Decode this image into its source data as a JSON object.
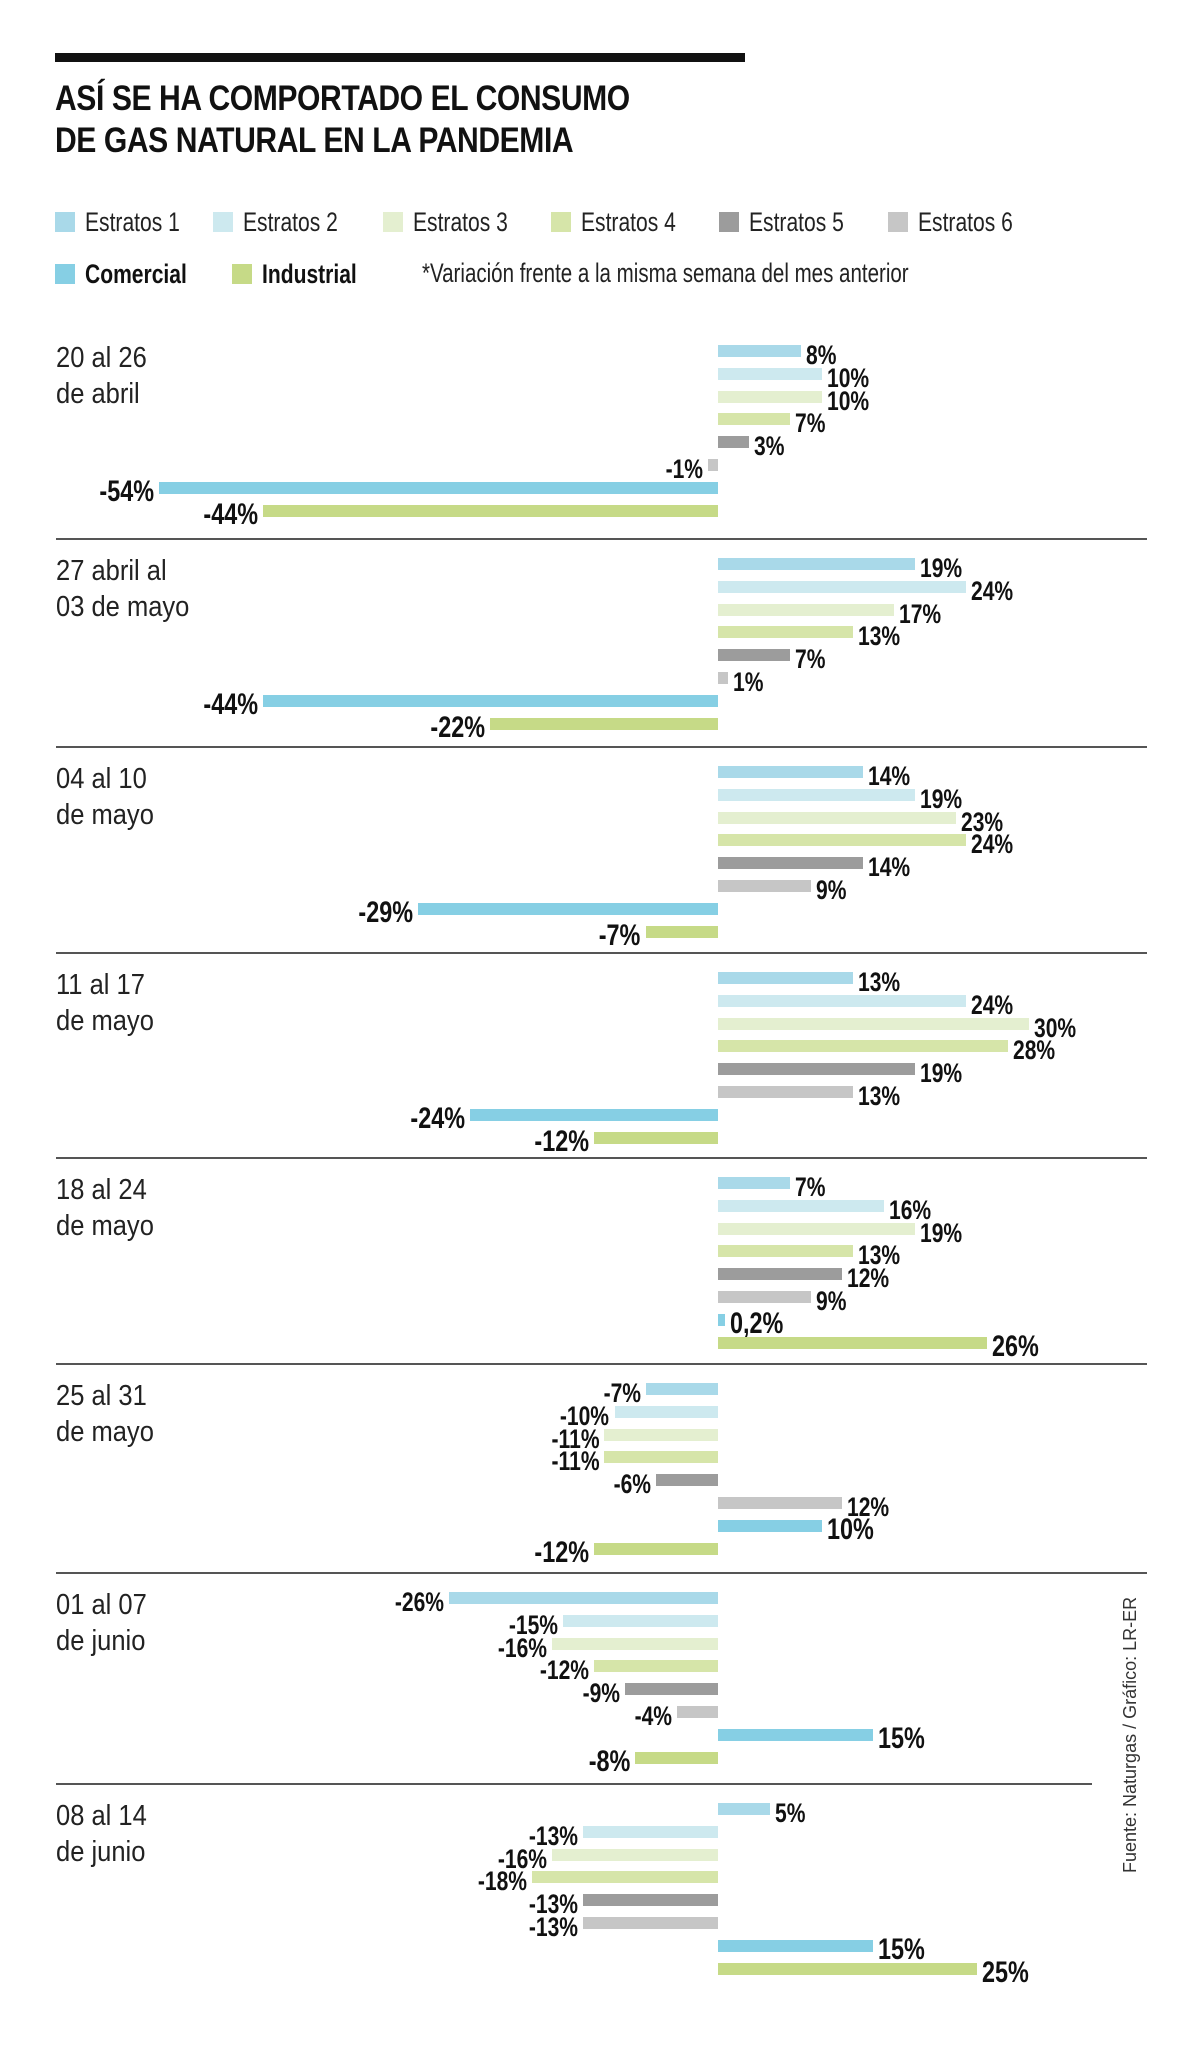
{
  "header": {
    "title_line1": "ASÍ SE HA COMPORTADO EL CONSUMO",
    "title_line2": "DE GAS NATURAL EN LA PANDEMIA"
  },
  "legend": {
    "items": [
      {
        "label": "Estratos 1",
        "color": "#a9d9e9"
      },
      {
        "label": "Estratos 2",
        "color": "#cde9ef"
      },
      {
        "label": "Estratos 3",
        "color": "#e4efd0"
      },
      {
        "label": "Estratos 4",
        "color": "#d6e5a9"
      },
      {
        "label": "Estratos 5",
        "color": "#9c9c9c"
      },
      {
        "label": "Estratos 6",
        "color": "#c6c6c6"
      },
      {
        "label": "Comercial",
        "color": "#86cfe4"
      },
      {
        "label": "Industrial",
        "color": "#c6da87"
      }
    ],
    "note": "*Variación frente a la misma semana del mes anterior"
  },
  "source": "Fuente: Naturgas / Gráfico: LR-ER",
  "chart_data": {
    "type": "bar",
    "orientation": "horizontal",
    "title": "ASÍ SE HA COMPORTADO EL CONSUMO DE GAS NATURAL EN LA PANDEMIA",
    "subtitle": "*Variación frente a la misma semana del mes anterior",
    "unit": "%",
    "xlabel": "",
    "ylabel": "",
    "grid": false,
    "legend_position": "top",
    "series_names": [
      "Estratos 1",
      "Estratos 2",
      "Estratos 3",
      "Estratos 4",
      "Estratos 5",
      "Estratos 6",
      "Comercial",
      "Industrial"
    ],
    "categories": [
      {
        "label_line1": "20 al 26",
        "label_line2": "de abril",
        "values": [
          8,
          10,
          10,
          7,
          3,
          -1,
          -54,
          -44
        ],
        "labels": [
          "8%",
          "10%",
          "10%",
          "7%",
          "3%",
          "-1%",
          "-54%",
          "-44%"
        ]
      },
      {
        "label_line1": "27 abril al",
        "label_line2": "03 de mayo",
        "values": [
          19,
          24,
          17,
          13,
          7,
          1,
          -44,
          -22
        ],
        "labels": [
          "19%",
          "24%",
          "17%",
          "13%",
          "7%",
          "1%",
          "-44%",
          "-22%"
        ]
      },
      {
        "label_line1": "04 al 10",
        "label_line2": "de mayo",
        "values": [
          14,
          19,
          23,
          24,
          14,
          9,
          -29,
          -7
        ],
        "labels": [
          "14%",
          "19%",
          "23%",
          "24%",
          "14%",
          "9%",
          "-29%",
          "-7%"
        ]
      },
      {
        "label_line1": "11 al 17",
        "label_line2": "de mayo",
        "values": [
          13,
          24,
          30,
          28,
          19,
          13,
          -24,
          -12
        ],
        "labels": [
          "13%",
          "24%",
          "30%",
          "28%",
          "19%",
          "13%",
          "-24%",
          "-12%"
        ]
      },
      {
        "label_line1": "18 al 24",
        "label_line2": "de mayo",
        "values": [
          7,
          16,
          19,
          13,
          12,
          9,
          0.2,
          26
        ],
        "labels": [
          "7%",
          "16%",
          "19%",
          "13%",
          "12%",
          "9%",
          "0,2%",
          "26%"
        ]
      },
      {
        "label_line1": "25 al 31",
        "label_line2": "de mayo",
        "values": [
          -7,
          -10,
          -11,
          -11,
          -6,
          12,
          10,
          -12
        ],
        "labels": [
          "-7%",
          "-10%",
          "-11%",
          "-11%",
          "-6%",
          "12%",
          "10%",
          "-12%"
        ]
      },
      {
        "label_line1": "01 al 07",
        "label_line2": "de junio",
        "values": [
          -26,
          -15,
          -16,
          -12,
          -9,
          -4,
          15,
          -8
        ],
        "labels": [
          "-26%",
          "-15%",
          "-16%",
          "-12%",
          "-9%",
          "-4%",
          "15%",
          "-8%"
        ]
      },
      {
        "label_line1": "08 al 14",
        "label_line2": "de junio",
        "values": [
          5,
          -13,
          -16,
          -18,
          -13,
          -13,
          15,
          25
        ],
        "labels": [
          "5%",
          "-13%",
          "-16%",
          "-18%",
          "-13%",
          "-13%",
          "15%",
          "25%"
        ]
      }
    ]
  }
}
